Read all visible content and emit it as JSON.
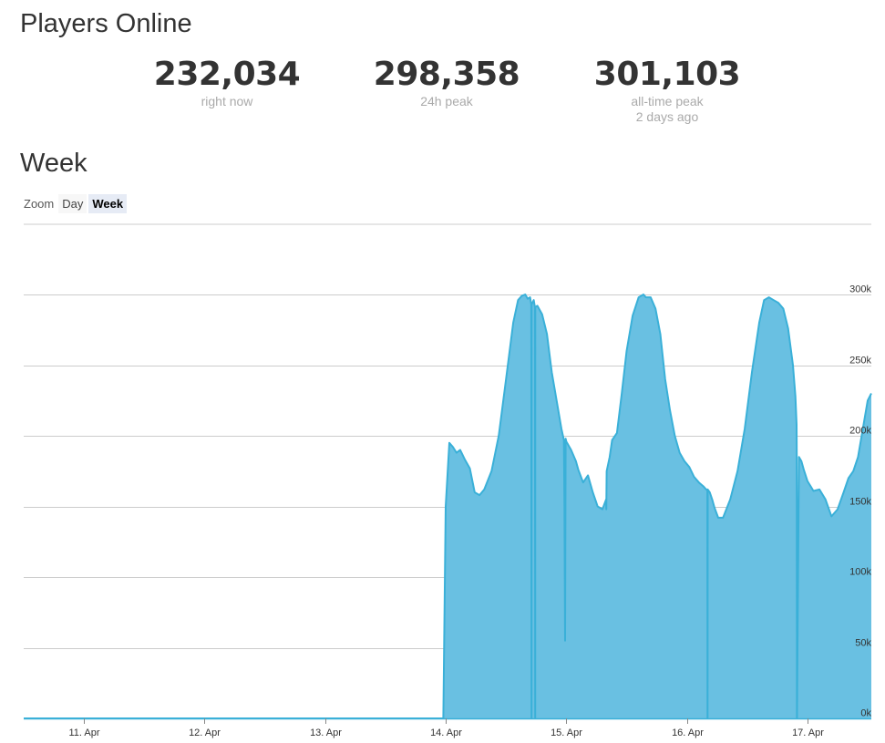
{
  "header": {
    "title": "Players Online"
  },
  "stats": [
    {
      "value": "232,034",
      "label": "right now",
      "sub": ""
    },
    {
      "value": "298,358",
      "label": "24h peak",
      "sub": ""
    },
    {
      "value": "301,103",
      "label": "all-time peak",
      "sub": "2 days ago"
    }
  ],
  "section": {
    "title": "Week"
  },
  "zoom": {
    "label": "Zoom",
    "options": [
      "Day",
      "Week"
    ],
    "selected": "Week"
  },
  "colors": {
    "area": "#69c0e2",
    "line": "#3ab0d8",
    "grid": "#cccccc",
    "tick": "#333333"
  },
  "chart_data": {
    "type": "area",
    "title": "",
    "xlabel": "",
    "ylabel": "",
    "x_unit": "days (April)",
    "xlim": [
      10.5,
      17.53
    ],
    "ylim": [
      0,
      350000
    ],
    "yaxis_position": "right",
    "grid": true,
    "x_tick_values": [
      11,
      12,
      13,
      14,
      15,
      16,
      17
    ],
    "x_tick_labels": [
      "11. Apr",
      "12. Apr",
      "13. Apr",
      "14. Apr",
      "15. Apr",
      "16. Apr",
      "17. Apr"
    ],
    "y_tick_values": [
      0,
      50000,
      100000,
      150000,
      200000,
      250000,
      300000
    ],
    "y_tick_labels": [
      "0k",
      "50k",
      "100k",
      "150k",
      "200k",
      "250k",
      "300k"
    ],
    "series": [
      {
        "name": "",
        "x": [
          10.5,
          13.98,
          14.0,
          14.03,
          14.06,
          14.09,
          14.12,
          14.16,
          14.2,
          14.24,
          14.28,
          14.32,
          14.38,
          14.44,
          14.5,
          14.56,
          14.6,
          14.63,
          14.66,
          14.68,
          14.7,
          14.71,
          14.712,
          14.713,
          14.73,
          14.74,
          14.742,
          14.743,
          14.76,
          14.8,
          14.84,
          14.88,
          14.92,
          14.96,
          14.98,
          14.985,
          14.99,
          14.995,
          15.0,
          15.04,
          15.08,
          15.1,
          15.14,
          15.18,
          15.22,
          15.26,
          15.3,
          15.33,
          15.332,
          15.335,
          15.36,
          15.38,
          15.42,
          15.46,
          15.5,
          15.55,
          15.6,
          15.64,
          15.66,
          15.7,
          15.74,
          15.78,
          15.82,
          15.86,
          15.9,
          15.94,
          15.98,
          16.02,
          16.06,
          16.1,
          16.14,
          16.16,
          16.17,
          16.172,
          16.173,
          16.19,
          16.21,
          16.23,
          16.26,
          16.3,
          16.36,
          16.42,
          16.48,
          16.54,
          16.6,
          16.64,
          16.68,
          16.72,
          16.76,
          16.8,
          16.84,
          16.88,
          16.9,
          16.91,
          16.912,
          16.913,
          16.93,
          16.95,
          16.97,
          17.0,
          17.05,
          17.1,
          17.15,
          17.2,
          17.25,
          17.3,
          17.34,
          17.38,
          17.42,
          17.46,
          17.5,
          17.53
        ],
        "y": [
          0,
          0,
          150000,
          195000,
          192000,
          188000,
          190000,
          183000,
          177000,
          160000,
          158000,
          162000,
          175000,
          200000,
          240000,
          280000,
          296000,
          299000,
          300000,
          297000,
          298000,
          293000,
          0,
          293000,
          296000,
          291000,
          0,
          291000,
          292000,
          286000,
          272000,
          245000,
          225000,
          205000,
          197000,
          150000,
          55000,
          198000,
          196000,
          190000,
          182000,
          176000,
          167000,
          172000,
          160000,
          150000,
          148000,
          155000,
          148000,
          175000,
          185000,
          197000,
          202000,
          230000,
          260000,
          285000,
          298000,
          300000,
          298000,
          298000,
          290000,
          272000,
          240000,
          218000,
          200000,
          188000,
          182000,
          178000,
          171000,
          167000,
          164000,
          162000,
          162000,
          0,
          162000,
          160000,
          155000,
          149000,
          142000,
          142000,
          155000,
          175000,
          205000,
          245000,
          280000,
          296000,
          298000,
          296000,
          294000,
          290000,
          276000,
          250000,
          228000,
          208000,
          185000,
          0,
          185000,
          182000,
          176000,
          168000,
          161000,
          162000,
          155000,
          143000,
          148000,
          160000,
          170000,
          175000,
          185000,
          205000,
          225000,
          230000
        ]
      }
    ]
  }
}
